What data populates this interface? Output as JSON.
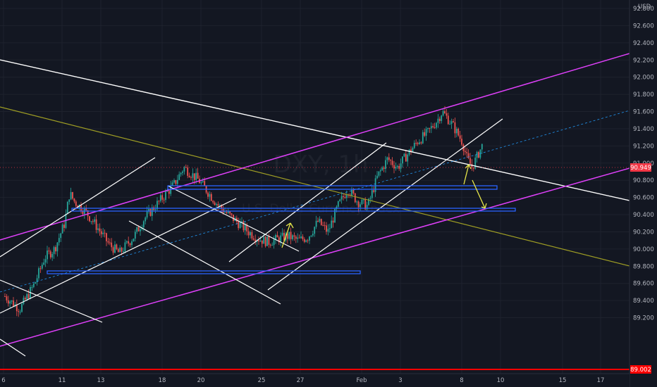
{
  "chart_data": {
    "type": "candlestick",
    "symbol_watermark": "DXY, 1h",
    "subtitle_watermark": "U.S. Dollar Currency Index",
    "currency": "USD",
    "y_ticks": [
      92.8,
      92.6,
      92.4,
      92.2,
      92.0,
      91.8,
      91.6,
      91.4,
      91.2,
      91.0,
      90.8,
      90.6,
      90.4,
      90.2,
      90.0,
      89.8,
      89.6,
      89.4,
      89.2
    ],
    "x_ticks": [
      "6",
      "11",
      "13",
      "18",
      "20",
      "25",
      "27",
      "Feb",
      "3",
      "8",
      "10",
      "15",
      "17"
    ],
    "last_price": "90.949",
    "support_price": "89.002",
    "colors": {
      "background": "#131722",
      "grid": "#1e222d",
      "up": "#26a69a",
      "down": "#ef5350",
      "trendline": "#ffffff",
      "channel": "#e040fb",
      "olive_line": "#9e9d24",
      "boxes": "#2962ff",
      "arrows": "#e8e84a",
      "support": "#ff0000",
      "last_price_tag": "#f23645"
    },
    "price_path": [
      [
        0,
        89.45
      ],
      [
        3,
        89.3
      ],
      [
        6,
        89.6
      ],
      [
        8,
        89.9
      ],
      [
        10,
        90.0
      ],
      [
        12,
        90.3
      ],
      [
        13,
        90.65
      ],
      [
        14,
        90.55
      ],
      [
        16,
        90.45
      ],
      [
        18,
        90.3
      ],
      [
        21,
        90.05
      ],
      [
        23,
        89.95
      ],
      [
        26,
        90.15
      ],
      [
        28,
        90.35
      ],
      [
        31,
        90.55
      ],
      [
        34,
        90.75
      ],
      [
        36,
        90.95
      ],
      [
        37,
        90.9
      ],
      [
        39,
        90.8
      ],
      [
        41,
        90.65
      ],
      [
        43,
        90.5
      ],
      [
        45,
        90.4
      ],
      [
        47,
        90.3
      ],
      [
        49,
        90.2
      ],
      [
        51,
        90.12
      ],
      [
        53,
        90.08
      ],
      [
        55,
        90.12
      ],
      [
        57,
        90.15
      ],
      [
        59,
        90.1
      ],
      [
        61,
        90.14
      ],
      [
        63,
        90.32
      ],
      [
        65,
        90.2
      ],
      [
        67,
        90.5
      ],
      [
        69,
        90.7
      ],
      [
        71,
        90.55
      ],
      [
        73,
        90.5
      ],
      [
        75,
        90.85
      ],
      [
        77,
        91.05
      ],
      [
        79,
        90.95
      ],
      [
        81,
        91.1
      ],
      [
        83,
        91.25
      ],
      [
        85,
        91.35
      ],
      [
        87,
        91.5
      ],
      [
        88,
        91.6
      ],
      [
        90,
        91.45
      ],
      [
        92,
        91.25
      ],
      [
        93,
        91.05
      ],
      [
        94,
        90.95
      ],
      [
        96,
        91.2
      ],
      [
        97,
        91.1
      ],
      [
        98,
        90.95
      ]
    ]
  }
}
